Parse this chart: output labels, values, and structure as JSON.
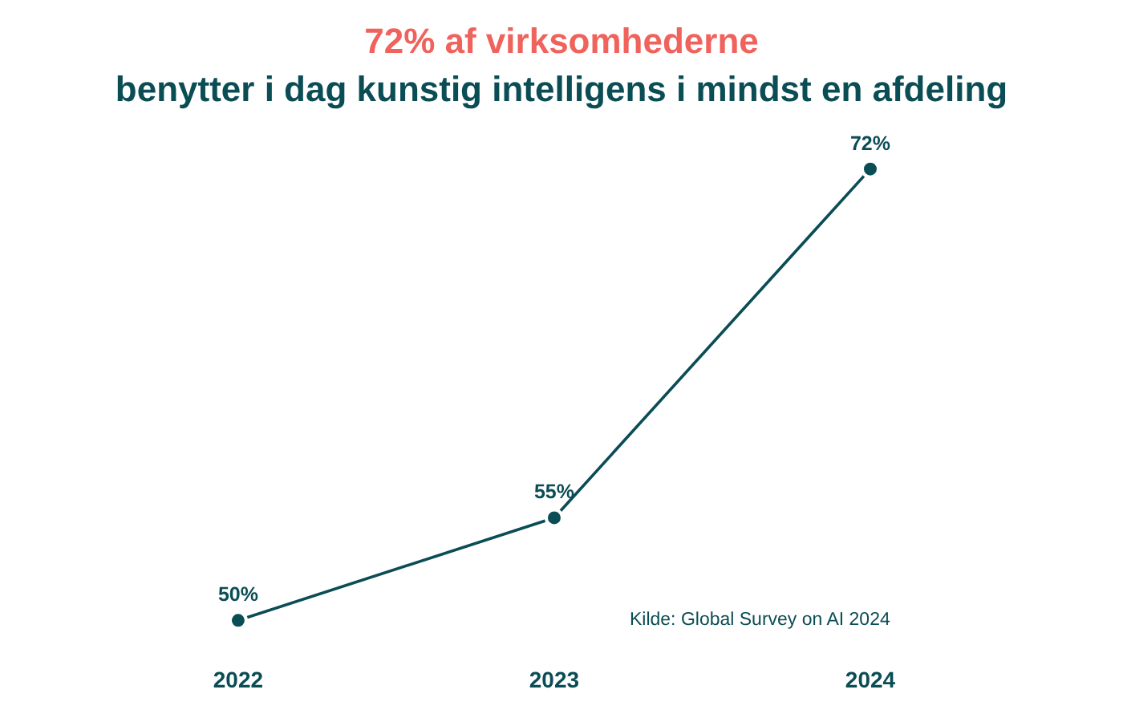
{
  "chart_data": {
    "type": "line",
    "title": "72% af virksomhederne",
    "subtitle": "benytter i dag kunstig intelligens i mindst en afdeling",
    "categories": [
      "2022",
      "2023",
      "2024"
    ],
    "values": [
      50,
      55,
      72
    ],
    "value_labels": [
      "50%",
      "55%",
      "72%"
    ],
    "color": "#0b4d55",
    "marker": "circle",
    "line_style": "solid",
    "tick_labels": "x",
    "annotations": [
      "Kilde: Global Survey on AI 2024"
    ]
  }
}
